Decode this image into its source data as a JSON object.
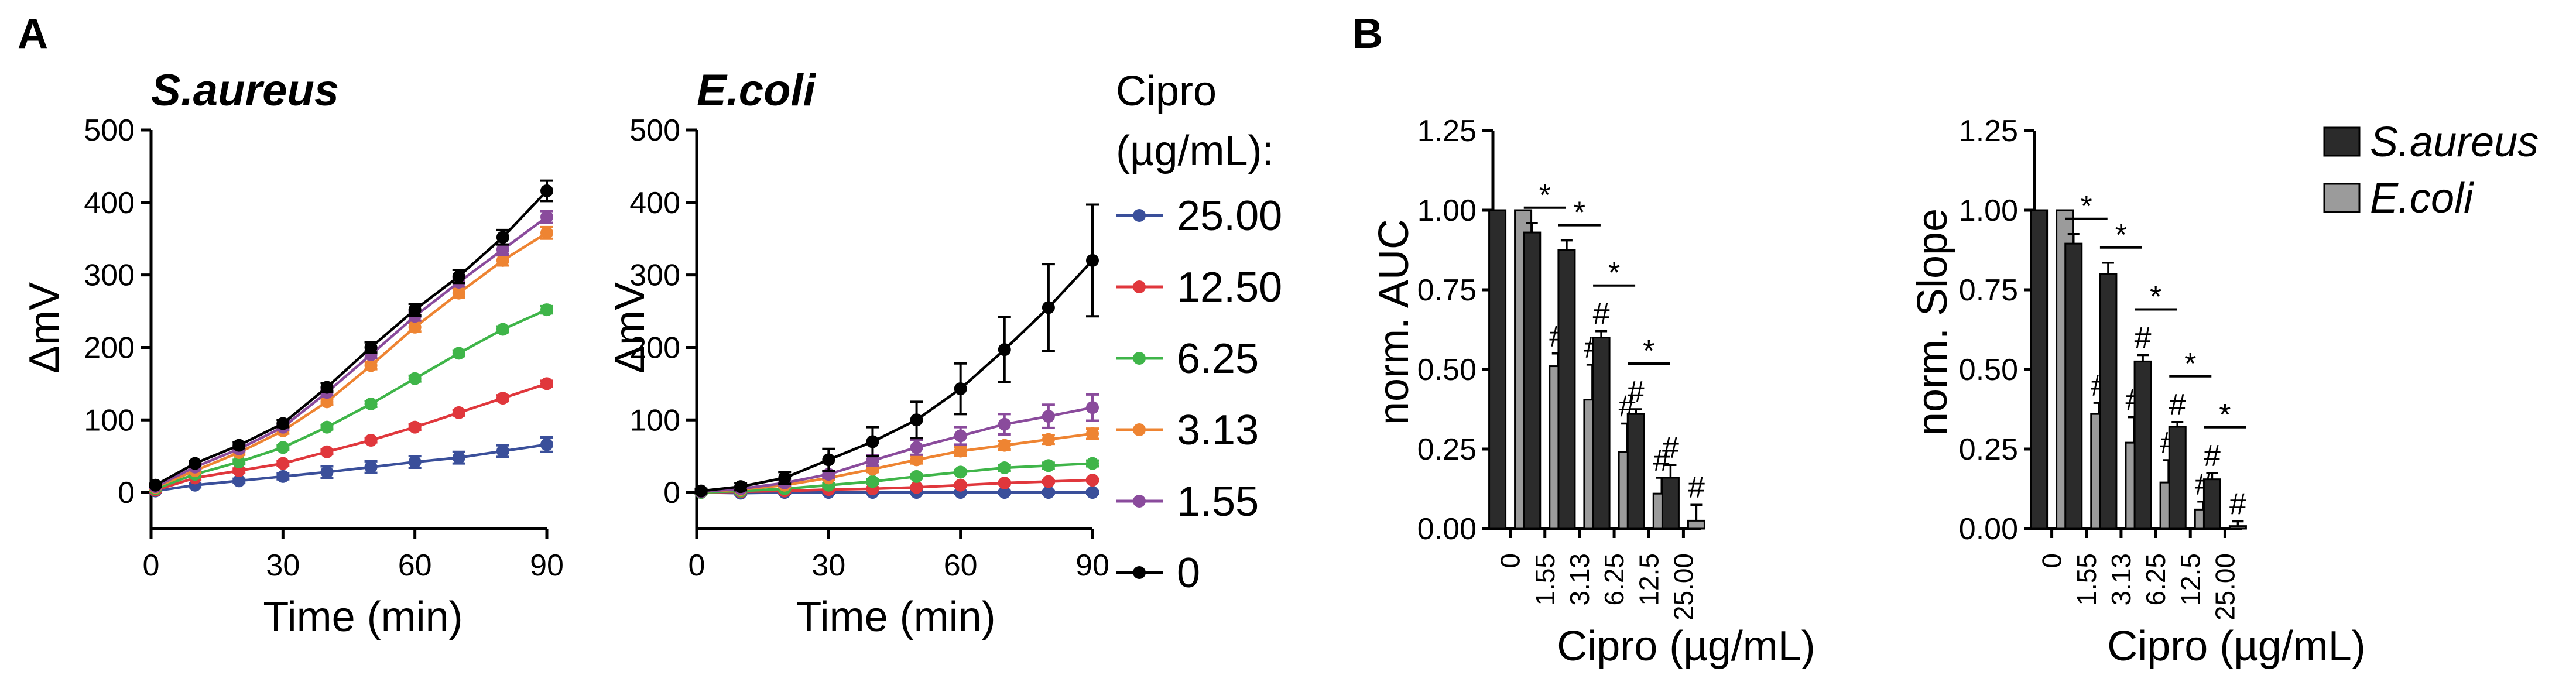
{
  "panel_labels": {
    "a": "A",
    "b": "B"
  },
  "legend": {
    "title_line1": "Cipro",
    "title_line2": "(µg/mL):",
    "entries": [
      {
        "label": "25.00",
        "color": "#3a4f9a"
      },
      {
        "label": "12.50",
        "color": "#e0373c"
      },
      {
        "label": "6.25",
        "color": "#3fb549"
      },
      {
        "label": "3.13",
        "color": "#ee8432"
      },
      {
        "label": "1.55",
        "color": "#8a4b9c"
      },
      {
        "label": "0",
        "color": "#000000"
      }
    ]
  },
  "bar_legend": {
    "entries": [
      {
        "label": "S.aureus",
        "color": "#2b2b2b"
      },
      {
        "label": "E.coli",
        "color": "#9b9b9b"
      }
    ]
  },
  "chart_data": [
    {
      "type": "line",
      "title": "S.aureus",
      "xlabel": "Time (min)",
      "ylabel": "ΔmV",
      "xlim": [
        0,
        90
      ],
      "ylim": [
        -50,
        500
      ],
      "xticks": [
        0,
        30,
        60,
        90
      ],
      "yticks": [
        0,
        100,
        200,
        300,
        400,
        500
      ],
      "x": [
        1,
        10,
        20,
        30,
        40,
        50,
        60,
        70,
        80,
        90
      ],
      "series": [
        {
          "name": "25.00",
          "values": [
            2,
            10,
            16,
            22,
            28,
            35,
            42,
            48,
            57,
            66
          ],
          "errors": [
            2,
            3,
            3,
            4,
            8,
            8,
            8,
            8,
            8,
            10
          ]
        },
        {
          "name": "12.50",
          "values": [
            3,
            20,
            30,
            40,
            56,
            72,
            90,
            110,
            130,
            150
          ],
          "errors": [
            2,
            3,
            3,
            3,
            3,
            3,
            4,
            4,
            4,
            4
          ]
        },
        {
          "name": "6.25",
          "values": [
            5,
            25,
            42,
            62,
            90,
            122,
            157,
            192,
            225,
            252
          ],
          "errors": [
            2,
            3,
            3,
            3,
            3,
            4,
            4,
            4,
            4,
            5
          ]
        },
        {
          "name": "3.13",
          "values": [
            7,
            30,
            55,
            85,
            125,
            175,
            228,
            275,
            320,
            358
          ],
          "errors": [
            2,
            3,
            3,
            4,
            4,
            5,
            6,
            6,
            7,
            8
          ]
        },
        {
          "name": "1.55",
          "values": [
            8,
            35,
            60,
            90,
            138,
            190,
            243,
            290,
            335,
            380
          ],
          "errors": [
            2,
            3,
            3,
            4,
            4,
            5,
            6,
            6,
            7,
            8
          ]
        },
        {
          "name": "0",
          "values": [
            10,
            40,
            65,
            95,
            145,
            200,
            252,
            298,
            352,
            416
          ],
          "errors": [
            2,
            3,
            4,
            5,
            6,
            7,
            8,
            9,
            10,
            14
          ]
        }
      ]
    },
    {
      "type": "line",
      "title": "E.coli",
      "xlabel": "Time (min)",
      "ylabel": "ΔmV",
      "xlim": [
        0,
        90
      ],
      "ylim": [
        -50,
        500
      ],
      "xticks": [
        0,
        30,
        60,
        90
      ],
      "yticks": [
        0,
        100,
        200,
        300,
        400,
        500
      ],
      "x": [
        1,
        10,
        20,
        30,
        40,
        50,
        60,
        70,
        80,
        90
      ],
      "series": [
        {
          "name": "25.00",
          "values": [
            0,
            -1,
            0,
            0,
            0,
            0,
            0,
            0,
            0,
            0
          ],
          "errors": [
            2,
            2,
            2,
            2,
            2,
            2,
            2,
            2,
            2,
            2
          ]
        },
        {
          "name": "12.50",
          "values": [
            0,
            1,
            2,
            4,
            5,
            7,
            10,
            13,
            15,
            17
          ],
          "errors": [
            2,
            2,
            2,
            2,
            2,
            2,
            2,
            2,
            2,
            2
          ]
        },
        {
          "name": "6.25",
          "values": [
            0,
            2,
            5,
            10,
            15,
            22,
            28,
            34,
            37,
            40
          ],
          "errors": [
            2,
            2,
            2,
            3,
            3,
            3,
            3,
            4,
            4,
            4
          ]
        },
        {
          "name": "3.13",
          "values": [
            1,
            4,
            10,
            20,
            32,
            45,
            57,
            65,
            73,
            81
          ],
          "errors": [
            2,
            2,
            3,
            3,
            4,
            5,
            6,
            6,
            6,
            7
          ]
        },
        {
          "name": "1.55",
          "values": [
            1,
            5,
            13,
            25,
            44,
            62,
            78,
            94,
            105,
            117
          ],
          "errors": [
            2,
            3,
            4,
            5,
            7,
            10,
            12,
            14,
            16,
            18
          ]
        },
        {
          "name": "0",
          "values": [
            2,
            8,
            20,
            45,
            70,
            100,
            143,
            197,
            255,
            320
          ],
          "errors": [
            3,
            5,
            8,
            15,
            20,
            25,
            35,
            45,
            60,
            77
          ]
        }
      ]
    },
    {
      "type": "bar",
      "title": "",
      "xlabel": "Cipro (µg/mL)",
      "ylabel": "norm. AUC",
      "ylim": [
        0,
        1.25
      ],
      "yticks": [
        "0.00",
        "0.25",
        "0.50",
        "0.75",
        "1.00",
        "1.25"
      ],
      "categories": [
        "0",
        "1.55",
        "3.13",
        "6.25",
        "12.5",
        "25.00"
      ],
      "series": [
        {
          "name": "S.aureus",
          "values": [
            1.0,
            0.93,
            0.875,
            0.6,
            0.36,
            0.16
          ],
          "errors": [
            0,
            0.03,
            0.03,
            0.02,
            0.015,
            0.04
          ]
        },
        {
          "name": "E.coli",
          "values": [
            1.0,
            0.51,
            0.405,
            0.24,
            0.11,
            0.025
          ],
          "errors": [
            0,
            0.04,
            0.11,
            0.09,
            0.05,
            0.05
          ]
        }
      ],
      "hash_markers": [
        [
          false,
          false
        ],
        [
          false,
          true
        ],
        [
          false,
          true
        ],
        [
          true,
          true
        ],
        [
          true,
          true
        ],
        [
          true,
          true
        ]
      ],
      "significance": [
        false,
        true,
        true,
        true,
        true,
        false
      ],
      "hash_symbol": "#",
      "star_symbol": "*"
    },
    {
      "type": "bar",
      "title": "",
      "xlabel": "Cipro (µg/mL)",
      "ylabel": "norm. Slope",
      "ylim": [
        0,
        1.25
      ],
      "yticks": [
        "0.00",
        "0.25",
        "0.50",
        "0.75",
        "1.00",
        "1.25"
      ],
      "categories": [
        "0",
        "1.55",
        "3.13",
        "6.25",
        "12.5",
        "25.00"
      ],
      "series": [
        {
          "name": "S.aureus",
          "values": [
            1.0,
            0.895,
            0.8,
            0.525,
            0.32,
            0.155
          ],
          "errors": [
            0,
            0.03,
            0.035,
            0.02,
            0.015,
            0.02
          ]
        },
        {
          "name": "E.coli",
          "values": [
            1.0,
            0.36,
            0.27,
            0.145,
            0.06,
            0.008
          ],
          "errors": [
            0,
            0.035,
            0.08,
            0.07,
            0.025,
            0.015
          ]
        }
      ],
      "hash_markers": [
        [
          false,
          false
        ],
        [
          false,
          true
        ],
        [
          false,
          true
        ],
        [
          true,
          true
        ],
        [
          true,
          true
        ],
        [
          true,
          true
        ]
      ],
      "significance": [
        false,
        true,
        true,
        true,
        true,
        true
      ],
      "hash_symbol": "#",
      "star_symbol": "*"
    }
  ]
}
